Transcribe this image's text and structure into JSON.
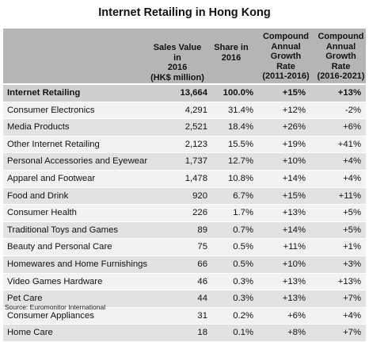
{
  "title": "Internet Retailing in Hong Kong",
  "headers": {
    "sales": [
      "Sales Value in",
      "2016",
      "(HK$ million)"
    ],
    "share": [
      "Share in",
      "2016"
    ],
    "cagr1": [
      "Compound",
      "Annual",
      "Growth",
      "Rate",
      "(2011-2016)"
    ],
    "cagr2": [
      "Compound",
      "Annual",
      "Growth",
      "Rate",
      "(2016-2021)"
    ]
  },
  "rows": [
    {
      "name": "Internet Retailing",
      "sales": "13,664",
      "share": "100.0%",
      "cagr1": "+15%",
      "cagr2": "+13%"
    },
    {
      "name": "Consumer Electronics",
      "sales": "4,291",
      "share": "31.4%",
      "cagr1": "+12%",
      "cagr2": "-2%"
    },
    {
      "name": "Media Products",
      "sales": "2,521",
      "share": "18.4%",
      "cagr1": "+26%",
      "cagr2": "+6%"
    },
    {
      "name": "Other Internet Retailing",
      "sales": "2,123",
      "share": "15.5%",
      "cagr1": "+19%",
      "cagr2": "+41%"
    },
    {
      "name": "Personal Accessories  and Eyewear",
      "sales": "1,737",
      "share": "12.7%",
      "cagr1": "+10%",
      "cagr2": "+4%"
    },
    {
      "name": "Apparel and Footwear",
      "sales": "1,478",
      "share": "10.8%",
      "cagr1": "+14%",
      "cagr2": "+4%"
    },
    {
      "name": "Food and Drink",
      "sales": "920",
      "share": "6.7%",
      "cagr1": "+15%",
      "cagr2": "+11%"
    },
    {
      "name": "Consumer Health",
      "sales": "226",
      "share": "1.7%",
      "cagr1": "+13%",
      "cagr2": "+5%"
    },
    {
      "name": "Traditional Toys and Games",
      "sales": "89",
      "share": "0.7%",
      "cagr1": "+14%",
      "cagr2": "+5%"
    },
    {
      "name": "Beauty and Personal Care",
      "sales": "75",
      "share": "0.5%",
      "cagr1": "+11%",
      "cagr2": "+1%"
    },
    {
      "name": "Homewares and Home Furnishings",
      "sales": "66",
      "share": "0.5%",
      "cagr1": "+10%",
      "cagr2": "+3%"
    },
    {
      "name": "Video Games Hardware",
      "sales": "46",
      "share": "0.3%",
      "cagr1": "+13%",
      "cagr2": "+13%"
    },
    {
      "name": "Pet Care",
      "sales": "44",
      "share": "0.3%",
      "cagr1": "+13%",
      "cagr2": "+7%"
    },
    {
      "name": "Consumer Appliances",
      "sales": "31",
      "share": "0.2%",
      "cagr1": "+6%",
      "cagr2": "+4%"
    },
    {
      "name": "Home Care",
      "sales": "18",
      "share": "0.1%",
      "cagr1": "+8%",
      "cagr2": "+7%"
    }
  ],
  "source": "Source: Euromonitor International"
}
